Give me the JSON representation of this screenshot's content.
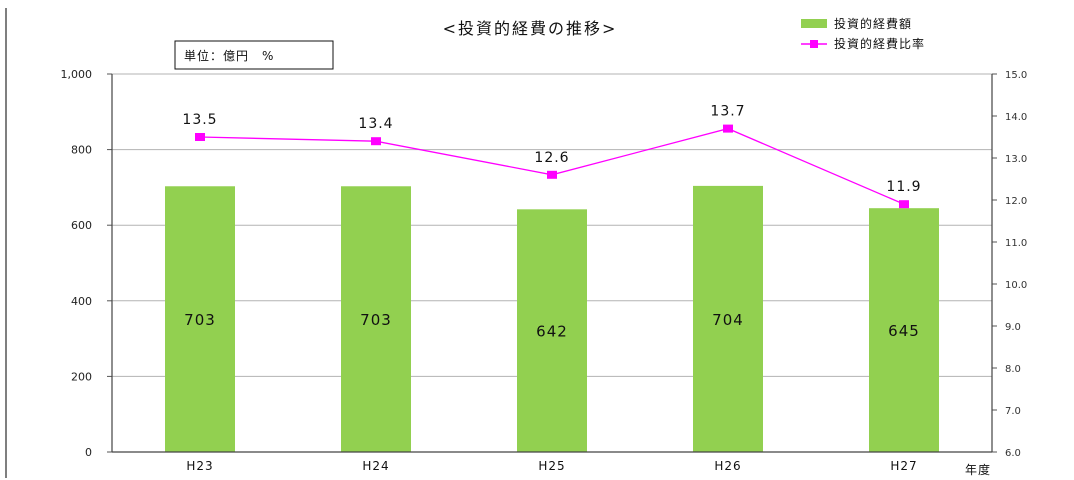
{
  "chart_data": {
    "type": "bar",
    "title": "<投資的経費の推移>",
    "unit_label": "単位：億円　%",
    "xlabel": "年度",
    "categories": [
      "H23",
      "H24",
      "H25",
      "H26",
      "H27"
    ],
    "series": [
      {
        "name": "投資的経費額",
        "type": "bar",
        "axis": "left",
        "color": "#92d050",
        "values": [
          703,
          703,
          642,
          704,
          645
        ]
      },
      {
        "name": "投資的経費比率",
        "type": "line",
        "axis": "right",
        "color": "#ff00ff",
        "values": [
          13.5,
          13.4,
          12.6,
          13.7,
          11.9
        ]
      }
    ],
    "y_left": {
      "min": 0,
      "max": 1000,
      "ticks": [
        "0",
        "200",
        "400",
        "600",
        "800",
        "1,000"
      ]
    },
    "y_right": {
      "min": 6.0,
      "max": 15.0,
      "ticks": [
        "6.0",
        "7.0",
        "8.0",
        "9.0",
        "10.0",
        "11.0",
        "12.0",
        "13.0",
        "14.0",
        "15.0"
      ]
    },
    "grid": true,
    "legend_position": "top-right"
  }
}
